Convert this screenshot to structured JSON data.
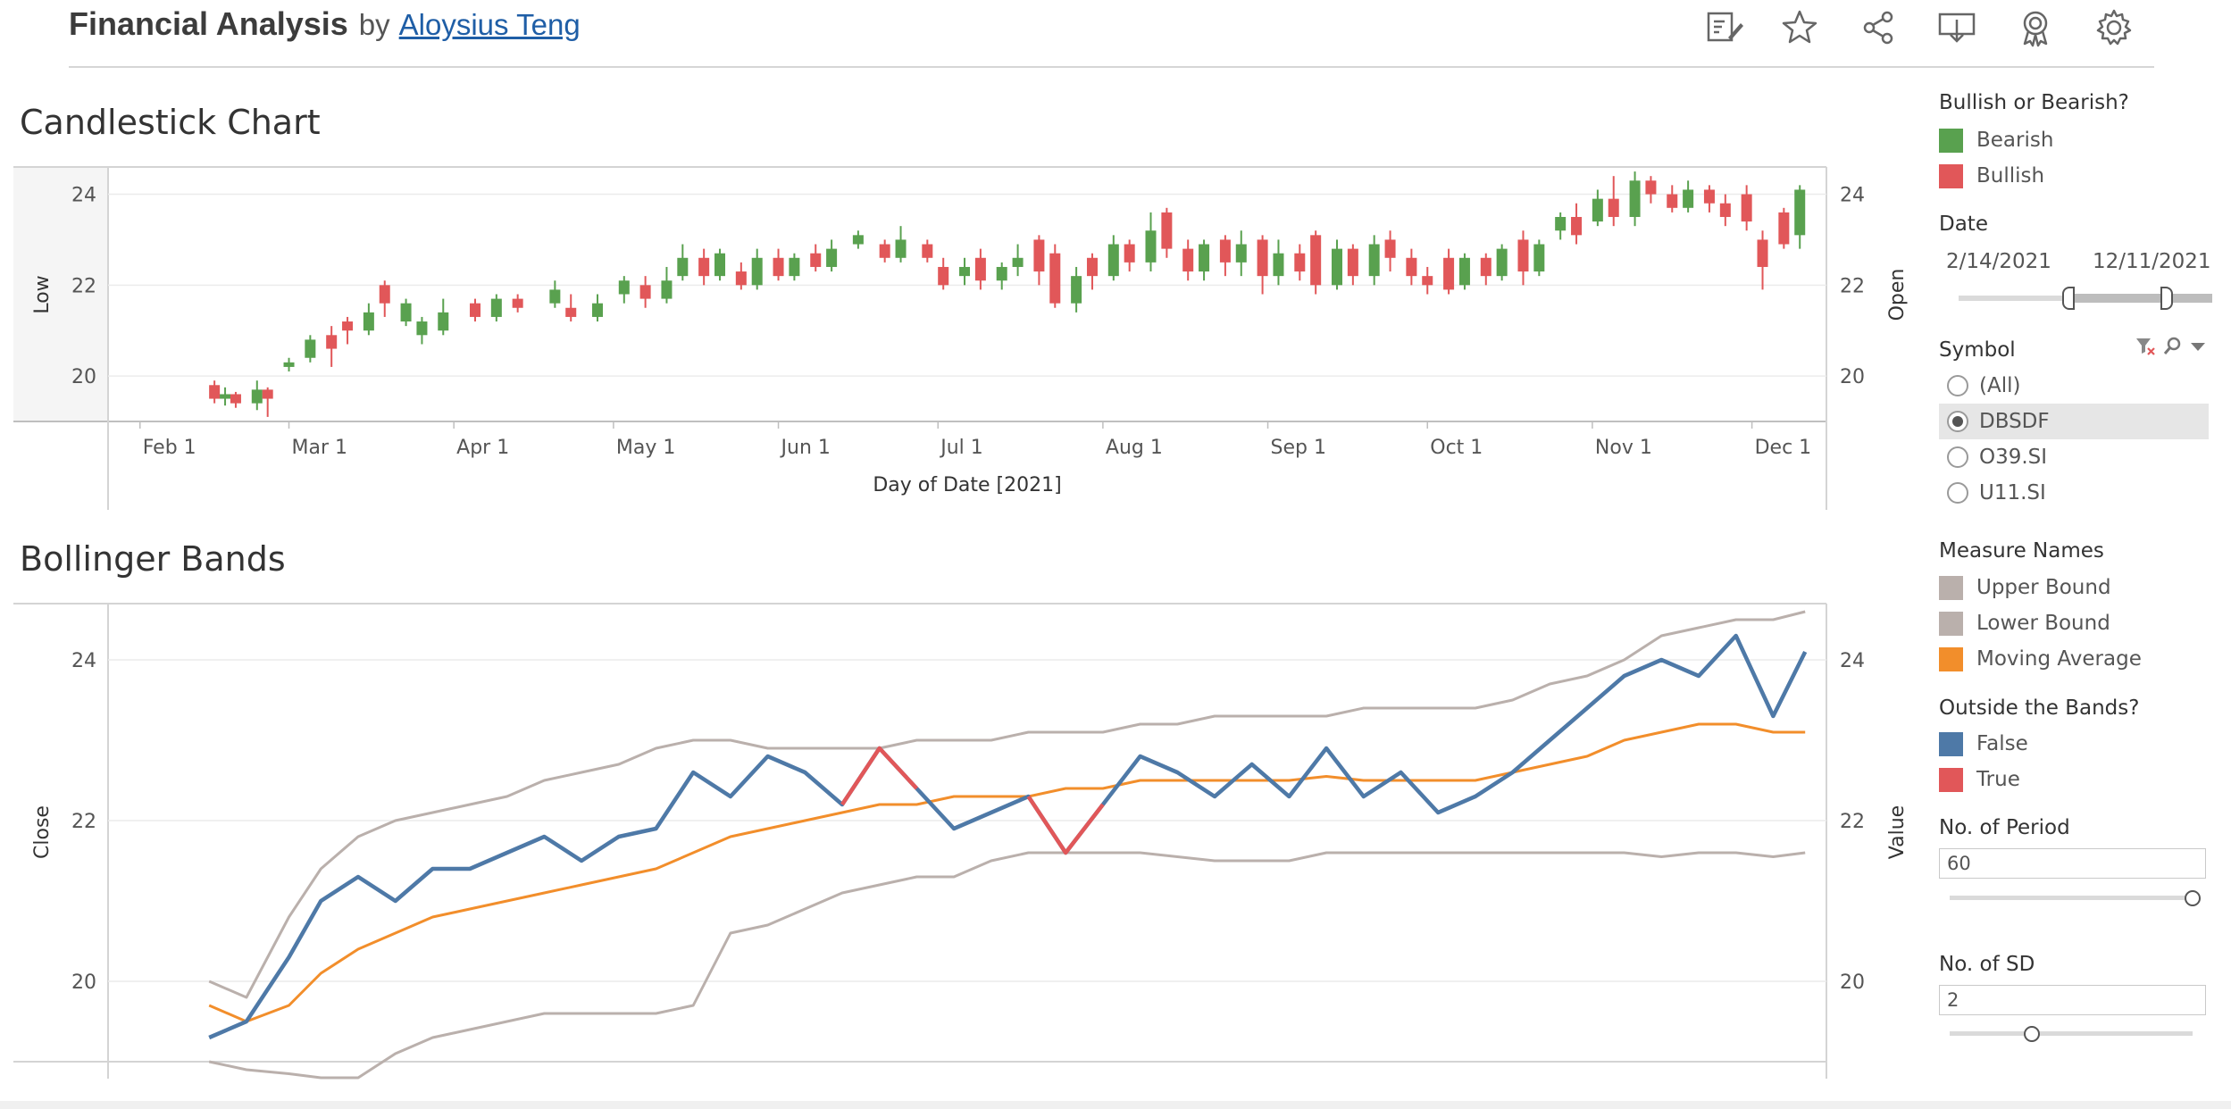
{
  "header": {
    "title": "Financial Analysis",
    "by": "by",
    "author": "Aloysius Teng",
    "toolbar_icons": [
      "annotate-icon",
      "star-icon",
      "share-icon",
      "download-icon",
      "badge-icon",
      "settings-icon"
    ]
  },
  "candlestick": {
    "title": "Candlestick Chart",
    "left_axis_label": "Low",
    "right_axis_label": "Open",
    "x_axis_label": "Day of Date [2021]",
    "y_ticks": [
      "24",
      "22",
      "20"
    ],
    "x_ticks": [
      "Feb 1",
      "Mar 1",
      "Apr 1",
      "May 1",
      "Jun 1",
      "Jul 1",
      "Aug 1",
      "Sep 1",
      "Oct 1",
      "Nov 1",
      "Dec 1"
    ]
  },
  "bollinger": {
    "title": "Bollinger Bands",
    "left_axis_label": "Close",
    "right_axis_label": "Value",
    "y_ticks": [
      "24",
      "22",
      "20"
    ]
  },
  "legend_trend": {
    "title": "Bullish or Bearish?",
    "items": [
      {
        "label": "Bearish",
        "color": "#59a14f"
      },
      {
        "label": "Bullish",
        "color": "#e15759"
      }
    ]
  },
  "date_filter": {
    "title": "Date",
    "start": "2/14/2021",
    "end": "12/11/2021"
  },
  "symbol_filter": {
    "title": "Symbol",
    "options": [
      "(All)",
      "DBSDF",
      "O39.SI",
      "U11.SI"
    ],
    "selected": "DBSDF"
  },
  "legend_measures": {
    "title": "Measure Names",
    "items": [
      {
        "label": "Upper Bound",
        "color": "#bab0ac"
      },
      {
        "label": "Lower Bound",
        "color": "#bab0ac"
      },
      {
        "label": "Moving Average",
        "color": "#f28e2b"
      }
    ]
  },
  "legend_outside": {
    "title": "Outside the Bands?",
    "items": [
      {
        "label": "False",
        "color": "#4e79a7"
      },
      {
        "label": "True",
        "color": "#e15759"
      }
    ]
  },
  "period_param": {
    "title": "No. of Period",
    "value": "60",
    "level": 1.0
  },
  "sd_param": {
    "title": "No. of SD",
    "value": "2",
    "level": 0.34
  },
  "chart_data": [
    {
      "type": "candlestick",
      "title": "Candlestick Chart",
      "xlabel": "Day of Date [2021]",
      "ylabel": "Low",
      "y2label": "Open",
      "ylim": [
        19,
        24.6
      ],
      "x_range": [
        "2021-01-26",
        "2021-12-15"
      ],
      "legend": "right",
      "candles": [
        {
          "d": "2021-02-15",
          "o": 19.8,
          "c": 19.5,
          "l": 19.4,
          "h": 19.9
        },
        {
          "d": "2021-02-17",
          "o": 19.5,
          "c": 19.6,
          "l": 19.35,
          "h": 19.75
        },
        {
          "d": "2021-02-19",
          "o": 19.6,
          "c": 19.4,
          "l": 19.3,
          "h": 19.65
        },
        {
          "d": "2021-02-23",
          "o": 19.4,
          "c": 19.7,
          "l": 19.25,
          "h": 19.9
        },
        {
          "d": "2021-02-25",
          "o": 19.7,
          "c": 19.5,
          "l": 19.1,
          "h": 19.75
        },
        {
          "d": "2021-03-01",
          "o": 20.2,
          "c": 20.3,
          "l": 20.1,
          "h": 20.4
        },
        {
          "d": "2021-03-05",
          "o": 20.4,
          "c": 20.8,
          "l": 20.3,
          "h": 20.9
        },
        {
          "d": "2021-03-09",
          "o": 20.9,
          "c": 20.6,
          "l": 20.2,
          "h": 21.1
        },
        {
          "d": "2021-03-12",
          "o": 21.2,
          "c": 21.0,
          "l": 20.7,
          "h": 21.3
        },
        {
          "d": "2021-03-16",
          "o": 21.0,
          "c": 21.4,
          "l": 20.9,
          "h": 21.6
        },
        {
          "d": "2021-03-19",
          "o": 22.0,
          "c": 21.6,
          "l": 21.3,
          "h": 22.1
        },
        {
          "d": "2021-03-23",
          "o": 21.2,
          "c": 21.6,
          "l": 21.1,
          "h": 21.7
        },
        {
          "d": "2021-03-26",
          "o": 20.9,
          "c": 21.2,
          "l": 20.7,
          "h": 21.3
        },
        {
          "d": "2021-03-30",
          "o": 21.0,
          "c": 21.4,
          "l": 20.9,
          "h": 21.7
        },
        {
          "d": "2021-04-05",
          "o": 21.6,
          "c": 21.3,
          "l": 21.2,
          "h": 21.7
        },
        {
          "d": "2021-04-09",
          "o": 21.3,
          "c": 21.7,
          "l": 21.2,
          "h": 21.8
        },
        {
          "d": "2021-04-13",
          "o": 21.7,
          "c": 21.5,
          "l": 21.4,
          "h": 21.8
        },
        {
          "d": "2021-04-20",
          "o": 21.6,
          "c": 21.9,
          "l": 21.5,
          "h": 22.1
        },
        {
          "d": "2021-04-23",
          "o": 21.5,
          "c": 21.3,
          "l": 21.2,
          "h": 21.8
        },
        {
          "d": "2021-04-28",
          "o": 21.3,
          "c": 21.6,
          "l": 21.2,
          "h": 21.8
        },
        {
          "d": "2021-05-03",
          "o": 21.8,
          "c": 22.1,
          "l": 21.6,
          "h": 22.2
        },
        {
          "d": "2021-05-07",
          "o": 22.0,
          "c": 21.7,
          "l": 21.5,
          "h": 22.2
        },
        {
          "d": "2021-05-11",
          "o": 21.7,
          "c": 22.1,
          "l": 21.6,
          "h": 22.4
        },
        {
          "d": "2021-05-14",
          "o": 22.2,
          "c": 22.6,
          "l": 22.1,
          "h": 22.9
        },
        {
          "d": "2021-05-18",
          "o": 22.6,
          "c": 22.2,
          "l": 22.0,
          "h": 22.8
        },
        {
          "d": "2021-05-21",
          "o": 22.2,
          "c": 22.7,
          "l": 22.1,
          "h": 22.8
        },
        {
          "d": "2021-05-25",
          "o": 22.3,
          "c": 22.0,
          "l": 21.9,
          "h": 22.5
        },
        {
          "d": "2021-05-28",
          "o": 22.0,
          "c": 22.6,
          "l": 21.9,
          "h": 22.8
        },
        {
          "d": "2021-06-01",
          "o": 22.6,
          "c": 22.2,
          "l": 22.1,
          "h": 22.8
        },
        {
          "d": "2021-06-04",
          "o": 22.2,
          "c": 22.6,
          "l": 22.1,
          "h": 22.7
        },
        {
          "d": "2021-06-08",
          "o": 22.7,
          "c": 22.4,
          "l": 22.3,
          "h": 22.9
        },
        {
          "d": "2021-06-11",
          "o": 22.4,
          "c": 22.8,
          "l": 22.3,
          "h": 23.0
        },
        {
          "d": "2021-06-16",
          "o": 22.9,
          "c": 23.1,
          "l": 22.8,
          "h": 23.2
        },
        {
          "d": "2021-06-21",
          "o": 22.9,
          "c": 22.6,
          "l": 22.5,
          "h": 23.0
        },
        {
          "d": "2021-06-24",
          "o": 22.6,
          "c": 23.0,
          "l": 22.5,
          "h": 23.3
        },
        {
          "d": "2021-06-29",
          "o": 22.9,
          "c": 22.6,
          "l": 22.5,
          "h": 23.0
        },
        {
          "d": "2021-07-02",
          "o": 22.4,
          "c": 22.0,
          "l": 21.9,
          "h": 22.6
        },
        {
          "d": "2021-07-06",
          "o": 22.2,
          "c": 22.4,
          "l": 22.0,
          "h": 22.6
        },
        {
          "d": "2021-07-09",
          "o": 22.6,
          "c": 22.1,
          "l": 21.9,
          "h": 22.8
        },
        {
          "d": "2021-07-13",
          "o": 22.1,
          "c": 22.4,
          "l": 21.9,
          "h": 22.5
        },
        {
          "d": "2021-07-16",
          "o": 22.4,
          "c": 22.6,
          "l": 22.2,
          "h": 22.9
        },
        {
          "d": "2021-07-20",
          "o": 23.0,
          "c": 22.3,
          "l": 22.0,
          "h": 23.1
        },
        {
          "d": "2021-07-23",
          "o": 22.7,
          "c": 21.6,
          "l": 21.5,
          "h": 22.9
        },
        {
          "d": "2021-07-27",
          "o": 21.6,
          "c": 22.2,
          "l": 21.4,
          "h": 22.4
        },
        {
          "d": "2021-07-30",
          "o": 22.6,
          "c": 22.2,
          "l": 21.9,
          "h": 22.7
        },
        {
          "d": "2021-08-03",
          "o": 22.2,
          "c": 22.9,
          "l": 22.1,
          "h": 23.1
        },
        {
          "d": "2021-08-06",
          "o": 22.9,
          "c": 22.5,
          "l": 22.3,
          "h": 23.0
        },
        {
          "d": "2021-08-10",
          "o": 22.5,
          "c": 23.2,
          "l": 22.3,
          "h": 23.6
        },
        {
          "d": "2021-08-13",
          "o": 23.6,
          "c": 22.8,
          "l": 22.6,
          "h": 23.7
        },
        {
          "d": "2021-08-17",
          "o": 22.8,
          "c": 22.3,
          "l": 22.1,
          "h": 23.0
        },
        {
          "d": "2021-08-20",
          "o": 22.3,
          "c": 22.9,
          "l": 22.1,
          "h": 23.0
        },
        {
          "d": "2021-08-24",
          "o": 23.0,
          "c": 22.5,
          "l": 22.2,
          "h": 23.1
        },
        {
          "d": "2021-08-27",
          "o": 22.5,
          "c": 22.9,
          "l": 22.2,
          "h": 23.2
        },
        {
          "d": "2021-08-31",
          "o": 23.0,
          "c": 22.2,
          "l": 21.8,
          "h": 23.1
        },
        {
          "d": "2021-09-03",
          "o": 22.2,
          "c": 22.7,
          "l": 22.0,
          "h": 23.0
        },
        {
          "d": "2021-09-07",
          "o": 22.7,
          "c": 22.3,
          "l": 22.1,
          "h": 22.9
        },
        {
          "d": "2021-09-10",
          "o": 23.1,
          "c": 22.0,
          "l": 21.8,
          "h": 23.2
        },
        {
          "d": "2021-09-14",
          "o": 22.0,
          "c": 22.8,
          "l": 21.9,
          "h": 23.0
        },
        {
          "d": "2021-09-17",
          "o": 22.8,
          "c": 22.2,
          "l": 22.0,
          "h": 22.9
        },
        {
          "d": "2021-09-21",
          "o": 22.2,
          "c": 22.9,
          "l": 22.0,
          "h": 23.1
        },
        {
          "d": "2021-09-24",
          "o": 23.0,
          "c": 22.6,
          "l": 22.3,
          "h": 23.2
        },
        {
          "d": "2021-09-28",
          "o": 22.6,
          "c": 22.2,
          "l": 22.0,
          "h": 22.8
        },
        {
          "d": "2021-10-01",
          "o": 22.2,
          "c": 22.0,
          "l": 21.8,
          "h": 22.4
        },
        {
          "d": "2021-10-05",
          "o": 22.6,
          "c": 21.9,
          "l": 21.8,
          "h": 22.8
        },
        {
          "d": "2021-10-08",
          "o": 22.0,
          "c": 22.6,
          "l": 21.9,
          "h": 22.7
        },
        {
          "d": "2021-10-12",
          "o": 22.6,
          "c": 22.2,
          "l": 22.0,
          "h": 22.7
        },
        {
          "d": "2021-10-15",
          "o": 22.2,
          "c": 22.8,
          "l": 22.1,
          "h": 22.9
        },
        {
          "d": "2021-10-19",
          "o": 23.0,
          "c": 22.3,
          "l": 22.0,
          "h": 23.2
        },
        {
          "d": "2021-10-22",
          "o": 22.3,
          "c": 22.9,
          "l": 22.2,
          "h": 23.0
        },
        {
          "d": "2021-10-26",
          "o": 23.2,
          "c": 23.5,
          "l": 23.0,
          "h": 23.6
        },
        {
          "d": "2021-10-29",
          "o": 23.5,
          "c": 23.1,
          "l": 22.9,
          "h": 23.8
        },
        {
          "d": "2021-11-02",
          "o": 23.4,
          "c": 23.9,
          "l": 23.3,
          "h": 24.1
        },
        {
          "d": "2021-11-05",
          "o": 23.9,
          "c": 23.5,
          "l": 23.3,
          "h": 24.4
        },
        {
          "d": "2021-11-09",
          "o": 23.5,
          "c": 24.3,
          "l": 23.3,
          "h": 24.5
        },
        {
          "d": "2021-11-12",
          "o": 24.3,
          "c": 24.0,
          "l": 23.8,
          "h": 24.4
        },
        {
          "d": "2021-11-16",
          "o": 24.0,
          "c": 23.7,
          "l": 23.6,
          "h": 24.2
        },
        {
          "d": "2021-11-19",
          "o": 23.7,
          "c": 24.1,
          "l": 23.6,
          "h": 24.3
        },
        {
          "d": "2021-11-23",
          "o": 24.1,
          "c": 23.8,
          "l": 23.6,
          "h": 24.2
        },
        {
          "d": "2021-11-26",
          "o": 23.8,
          "c": 23.5,
          "l": 23.3,
          "h": 24.0
        },
        {
          "d": "2021-11-30",
          "o": 24.0,
          "c": 23.4,
          "l": 23.2,
          "h": 24.2
        },
        {
          "d": "2021-12-03",
          "o": 23.0,
          "c": 22.4,
          "l": 21.9,
          "h": 23.2
        },
        {
          "d": "2021-12-07",
          "o": 23.6,
          "c": 22.9,
          "l": 22.8,
          "h": 23.7
        },
        {
          "d": "2021-12-10",
          "o": 23.1,
          "c": 24.1,
          "l": 22.8,
          "h": 24.2
        }
      ]
    },
    {
      "type": "line",
      "title": "Bollinger Bands",
      "ylabel": "Close",
      "y2label": "Value",
      "ylim": [
        19,
        24.7
      ],
      "legend": "right",
      "x": [
        "2021-02-14",
        "2021-02-21",
        "2021-03-01",
        "2021-03-07",
        "2021-03-14",
        "2021-03-21",
        "2021-03-28",
        "2021-04-04",
        "2021-04-11",
        "2021-04-18",
        "2021-04-25",
        "2021-05-02",
        "2021-05-09",
        "2021-05-16",
        "2021-05-23",
        "2021-05-30",
        "2021-06-06",
        "2021-06-13",
        "2021-06-20",
        "2021-06-27",
        "2021-07-04",
        "2021-07-11",
        "2021-07-18",
        "2021-07-25",
        "2021-08-01",
        "2021-08-08",
        "2021-08-15",
        "2021-08-22",
        "2021-08-29",
        "2021-09-05",
        "2021-09-12",
        "2021-09-19",
        "2021-09-26",
        "2021-10-03",
        "2021-10-10",
        "2021-10-17",
        "2021-10-24",
        "2021-10-31",
        "2021-11-07",
        "2021-11-14",
        "2021-11-21",
        "2021-11-28",
        "2021-12-05",
        "2021-12-11"
      ],
      "series": [
        {
          "name": "Upper Bound",
          "color": "#bab0ac",
          "values": [
            20.0,
            19.8,
            20.8,
            21.4,
            21.8,
            22.0,
            22.1,
            22.2,
            22.3,
            22.5,
            22.6,
            22.7,
            22.9,
            23.0,
            23.0,
            22.9,
            22.9,
            22.9,
            22.9,
            23.0,
            23.0,
            23.0,
            23.1,
            23.1,
            23.1,
            23.2,
            23.2,
            23.3,
            23.3,
            23.3,
            23.3,
            23.4,
            23.4,
            23.4,
            23.4,
            23.5,
            23.7,
            23.8,
            24.0,
            24.3,
            24.4,
            24.5,
            24.5,
            24.6
          ]
        },
        {
          "name": "Lower Bound",
          "color": "#bab0ac",
          "values": [
            19.0,
            18.9,
            18.85,
            18.8,
            18.8,
            19.1,
            19.3,
            19.4,
            19.5,
            19.6,
            19.6,
            19.6,
            19.6,
            19.7,
            20.6,
            20.7,
            20.9,
            21.1,
            21.2,
            21.3,
            21.3,
            21.5,
            21.6,
            21.6,
            21.6,
            21.6,
            21.55,
            21.5,
            21.5,
            21.5,
            21.6,
            21.6,
            21.6,
            21.6,
            21.6,
            21.6,
            21.6,
            21.6,
            21.6,
            21.55,
            21.6,
            21.6,
            21.55,
            21.6
          ]
        },
        {
          "name": "Moving Average",
          "color": "#f28e2b",
          "values": [
            19.7,
            19.5,
            19.7,
            20.1,
            20.4,
            20.6,
            20.8,
            20.9,
            21.0,
            21.1,
            21.2,
            21.3,
            21.4,
            21.6,
            21.8,
            21.9,
            22.0,
            22.1,
            22.2,
            22.2,
            22.3,
            22.3,
            22.3,
            22.4,
            22.4,
            22.5,
            22.5,
            22.5,
            22.5,
            22.5,
            22.55,
            22.5,
            22.5,
            22.5,
            22.5,
            22.6,
            22.7,
            22.8,
            23.0,
            23.1,
            23.2,
            23.2,
            23.1,
            23.1
          ]
        },
        {
          "name": "Close",
          "color": "#4e79a7",
          "values": [
            19.3,
            19.5,
            20.3,
            21.0,
            21.3,
            21.0,
            21.4,
            21.4,
            21.6,
            21.8,
            21.5,
            21.8,
            21.9,
            22.6,
            22.3,
            22.8,
            22.6,
            22.2,
            22.9,
            22.4,
            21.9,
            22.1,
            22.3,
            21.6,
            22.2,
            22.8,
            22.6,
            22.3,
            22.7,
            22.3,
            22.9,
            22.3,
            22.6,
            22.1,
            22.3,
            22.6,
            23.0,
            23.4,
            23.8,
            24.0,
            23.8,
            24.3,
            23.3,
            24.1
          ]
        }
      ],
      "highlight": {
        "name": "True",
        "color": "#e15759"
      }
    }
  ]
}
